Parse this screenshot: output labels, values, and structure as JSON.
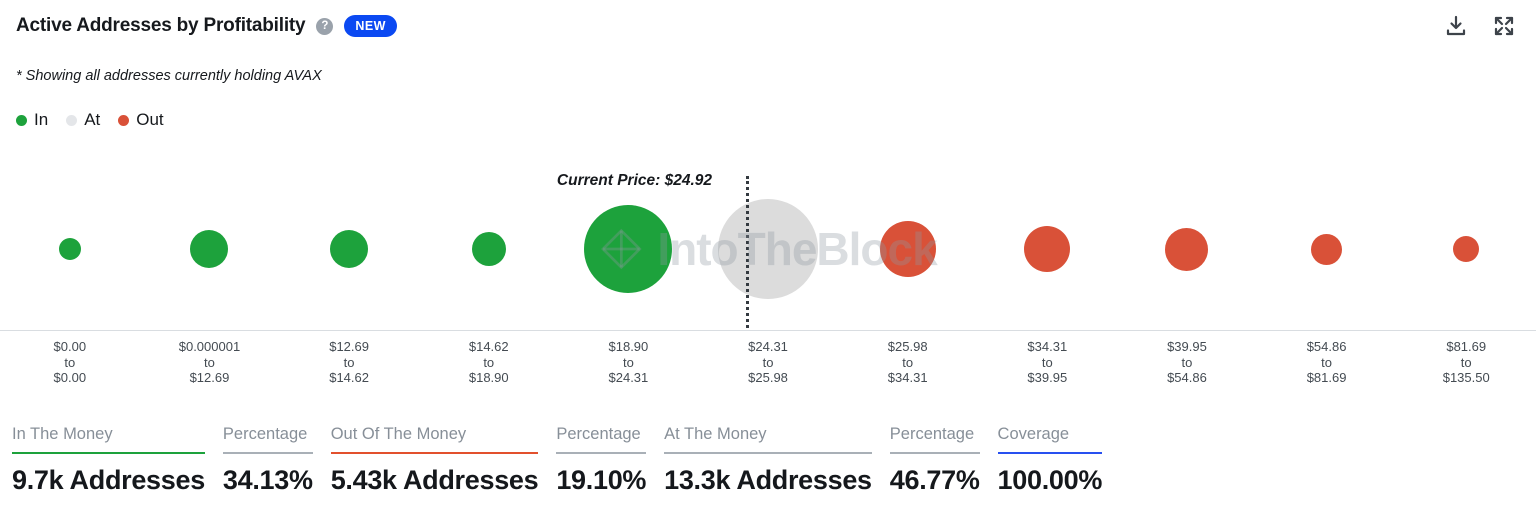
{
  "header": {
    "title": "Active Addresses by Profitability",
    "help_glyph": "?",
    "badge": "NEW"
  },
  "subtitle": "* Showing all addresses currently holding AVAX",
  "legend": {
    "items": [
      {
        "label": "In",
        "color": "#1da23c"
      },
      {
        "label": "At",
        "color": "#e4e6e9"
      },
      {
        "label": "Out",
        "color": "#d95138"
      }
    ]
  },
  "chart_data": {
    "type": "bubble",
    "title": "Active Addresses by Profitability",
    "annotation": "Current Price: $24.92",
    "current_price": 24.92,
    "watermark": "IntoTheBlock",
    "range_separator": "to",
    "colors": {
      "in": "#1da23c",
      "at": "#dcdcdc",
      "out": "#d95138"
    },
    "current_price_line_column": 6,
    "bubbles": [
      {
        "range_from": "$0.00",
        "range_to": "$0.00",
        "status": "in",
        "diameter": 22
      },
      {
        "range_from": "$0.000001",
        "range_to": "$12.69",
        "status": "in",
        "diameter": 38
      },
      {
        "range_from": "$12.69",
        "range_to": "$14.62",
        "status": "in",
        "diameter": 38
      },
      {
        "range_from": "$14.62",
        "range_to": "$18.90",
        "status": "in",
        "diameter": 34
      },
      {
        "range_from": "$18.90",
        "range_to": "$24.31",
        "status": "in",
        "diameter": 88
      },
      {
        "range_from": "$24.31",
        "range_to": "$25.98",
        "status": "at",
        "diameter": 100
      },
      {
        "range_from": "$25.98",
        "range_to": "$34.31",
        "status": "out",
        "diameter": 56
      },
      {
        "range_from": "$34.31",
        "range_to": "$39.95",
        "status": "out",
        "diameter": 46
      },
      {
        "range_from": "$39.95",
        "range_to": "$54.86",
        "status": "out",
        "diameter": 43
      },
      {
        "range_from": "$54.86",
        "range_to": "$81.69",
        "status": "out",
        "diameter": 31
      },
      {
        "range_from": "$81.69",
        "range_to": "$135.50",
        "status": "out",
        "diameter": 26
      }
    ]
  },
  "stats": [
    {
      "label": "In The Money",
      "value": "9.7k Addresses",
      "accent": "#1da23c"
    },
    {
      "label": "Percentage",
      "value": "34.13%",
      "accent": "#a9b0b7"
    },
    {
      "label": "Out Of The Money",
      "value": "5.43k Addresses",
      "accent": "#e2502d"
    },
    {
      "label": "Percentage",
      "value": "19.10%",
      "accent": "#a9b0b7"
    },
    {
      "label": "At The Money",
      "value": "13.3k Addresses",
      "accent": "#a9b0b7"
    },
    {
      "label": "Percentage",
      "value": "46.77%",
      "accent": "#a9b0b7"
    },
    {
      "label": "Coverage",
      "value": "100.00%",
      "accent": "#2850f0"
    }
  ]
}
